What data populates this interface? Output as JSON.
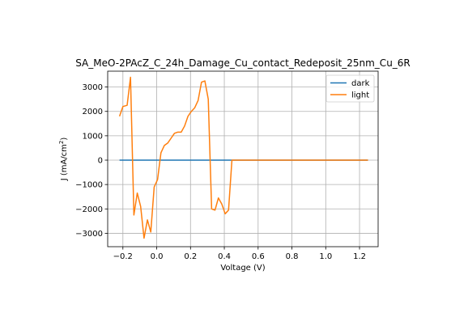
{
  "chart_data": {
    "type": "line",
    "title": "SA_MeO-2PAcZ_C_24h_Damage_Cu_contact_Redeposit_25nm_Cu_6R",
    "xlabel": "Voltage (V)",
    "ylabel_main": "J (mA/cm",
    "ylabel_sup": "2",
    "ylabel_close": ")",
    "xlim": [
      -0.29,
      1.31
    ],
    "ylim": [
      -3550,
      3650
    ],
    "xticks": [
      -0.2,
      0.0,
      0.2,
      0.4,
      0.6,
      0.8,
      1.0,
      1.2
    ],
    "xtick_labels": [
      "−0.2",
      "0.0",
      "0.2",
      "0.4",
      "0.6",
      "0.8",
      "1.0",
      "1.2"
    ],
    "yticks": [
      -3000,
      -2000,
      -1000,
      0,
      1000,
      2000,
      3000
    ],
    "ytick_labels": [
      "−3000",
      "−2000",
      "−1000",
      "0",
      "1000",
      "2000",
      "3000"
    ],
    "grid": true,
    "legend_position": "upper right",
    "series": [
      {
        "name": "dark",
        "color": "#1f77b4",
        "x": [
          -0.22,
          0.0,
          0.2,
          0.4,
          0.6,
          0.8,
          1.0,
          1.25
        ],
        "y": [
          0,
          0,
          0,
          0,
          0,
          0,
          0,
          0
        ]
      },
      {
        "name": "light",
        "color": "#ff7f0e",
        "x": [
          -0.22,
          -0.2,
          -0.175,
          -0.155,
          -0.135,
          -0.115,
          -0.095,
          -0.075,
          -0.055,
          -0.035,
          -0.015,
          0.005,
          0.025,
          0.045,
          0.065,
          0.085,
          0.105,
          0.125,
          0.145,
          0.165,
          0.185,
          0.205,
          0.225,
          0.245,
          0.265,
          0.285,
          0.305,
          0.325,
          0.345,
          0.365,
          0.385,
          0.405,
          0.425,
          0.445,
          0.465,
          0.485,
          0.505,
          0.525,
          0.545,
          0.565,
          0.585,
          0.6,
          0.65,
          0.8,
          1.0,
          1.25
        ],
        "y": [
          1800,
          2200,
          2250,
          3400,
          -2250,
          -1350,
          -1900,
          -3200,
          -2450,
          -2950,
          -1100,
          -800,
          300,
          600,
          700,
          900,
          1100,
          1150,
          1150,
          1400,
          1800,
          2000,
          2150,
          2450,
          3200,
          3250,
          2500,
          -2000,
          -2050,
          -1550,
          -1800,
          -2200,
          -2050,
          0,
          0,
          0,
          0,
          0,
          0,
          0,
          0,
          0,
          0,
          0,
          0,
          0
        ]
      }
    ]
  }
}
